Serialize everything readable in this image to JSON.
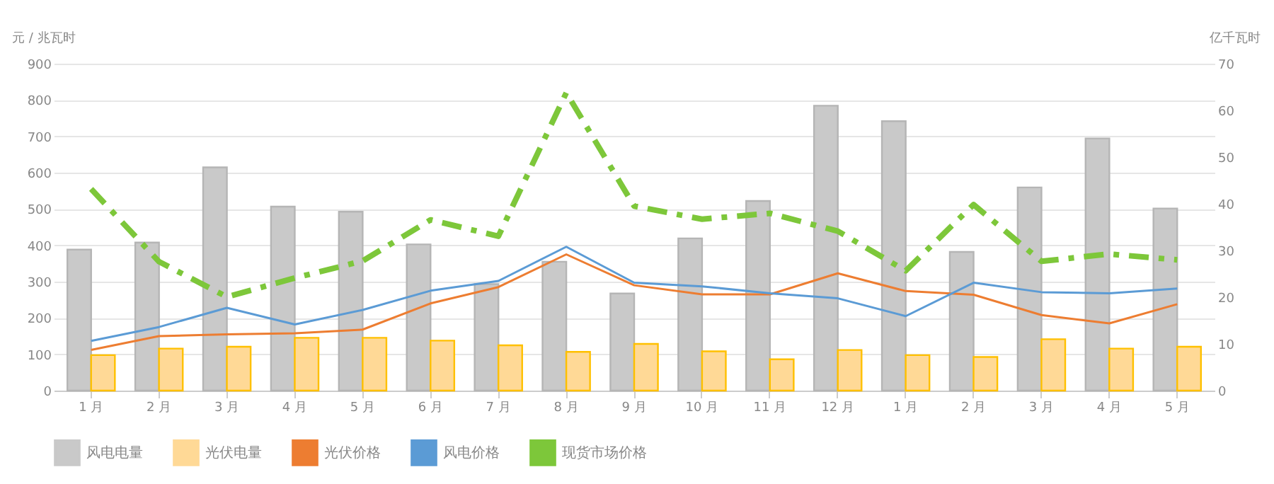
{
  "chart_data": {
    "type": "bar",
    "ylabel": "元 / 兆瓦时",
    "y2label": "亿千瓦时",
    "categories": [
      "1 月",
      "2 月",
      "3 月",
      "4 月",
      "5 月",
      "6 月",
      "7 月",
      "8 月",
      "9 月",
      "10 月",
      "11 月",
      "12 月",
      "1 月",
      "2 月",
      "3 月",
      "4 月",
      "5 月"
    ],
    "series": [
      {
        "name": "风电电量",
        "type": "bar",
        "axis": "y2",
        "color": "#c9c9c9",
        "values": [
          30.2,
          31.7,
          47.8,
          39.4,
          38.3,
          31.3,
          22.8,
          27.6,
          20.8,
          32.6,
          40.6,
          61,
          57.7,
          29.7,
          43.5,
          54,
          39
        ]
      },
      {
        "name": "光伏电量",
        "type": "bar",
        "axis": "y2",
        "color": "#ffd996",
        "values": [
          7.6,
          9,
          9.4,
          11.3,
          11.3,
          10.7,
          9.7,
          8.3,
          10,
          8.4,
          6.7,
          8.7,
          7.6,
          7.2,
          11,
          9,
          9.4
        ]
      },
      {
        "name": "光伏价格",
        "type": "line",
        "line_style": "solid",
        "color": "#ed7d31",
        "values": [
          112,
          150,
          155,
          158,
          168,
          240,
          285,
          375,
          290,
          265,
          265,
          323,
          274,
          264,
          208,
          185,
          238
        ]
      },
      {
        "name": "风电价格",
        "type": "line",
        "line_style": "solid",
        "color": "#5b9bd5",
        "values": [
          137,
          175,
          228,
          182,
          222,
          275,
          302,
          396,
          297,
          287,
          268,
          254,
          205,
          297,
          271,
          268,
          281
        ]
      },
      {
        "name": "现货市场价格",
        "type": "line",
        "line_style": "dashed",
        "color": "#7dc73a",
        "values": [
          555,
          355,
          258,
          310,
          357,
          470,
          425,
          820,
          508,
          472,
          488,
          439,
          330,
          512,
          356,
          376,
          360
        ]
      }
    ],
    "ylim": [
      0,
      900
    ],
    "yticks": [
      0,
      100,
      200,
      300,
      400,
      500,
      600,
      700,
      800,
      900
    ],
    "y2lim": [
      0,
      70
    ],
    "y2ticks": [
      0,
      10,
      20,
      30,
      40,
      50,
      60,
      70
    ],
    "grid": "y",
    "legend": "bottom"
  }
}
